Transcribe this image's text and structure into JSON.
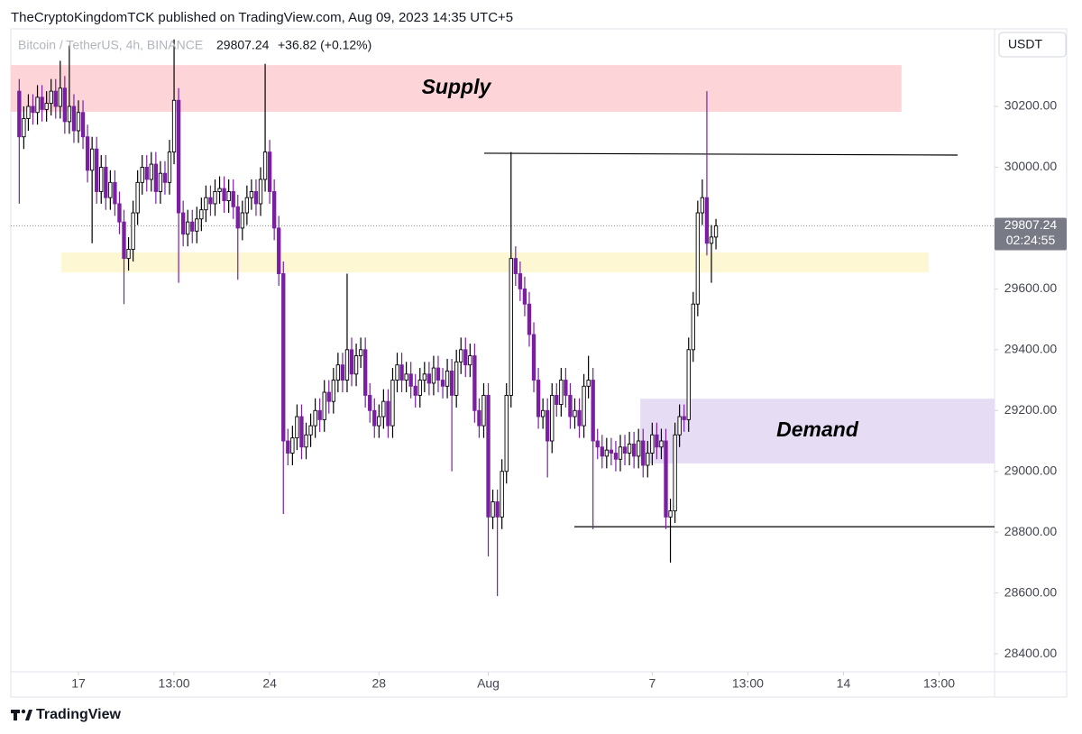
{
  "header": {
    "publisher": "TheCryptoKingdomTCK published on TradingView.com, Aug 09, 2023 14:35 UTC+5"
  },
  "chart_data": {
    "type": "candlestick",
    "symbol": "Bitcoin / TetherUS, 4h, BINANCE",
    "last_price": 29807.24,
    "change": "+36.82 (+0.12%)",
    "currency": "USDT",
    "countdown": "02:24:55",
    "up_color": "#ffffff",
    "down_color": "#7b1fa2",
    "wick_up_color": "#000000",
    "x": [
      -52,
      -48,
      -44,
      -40,
      -36,
      -32,
      -28,
      -24,
      -20,
      -16,
      -12,
      -8,
      -4,
      0,
      4,
      8,
      12,
      16,
      20,
      24,
      28,
      32,
      36,
      40,
      44,
      48,
      52,
      56,
      60,
      64,
      68,
      72,
      76,
      80,
      84,
      88,
      92,
      96,
      100,
      104,
      108,
      112,
      116,
      120,
      124,
      128,
      132,
      136,
      140,
      144,
      148,
      152,
      156,
      160,
      164,
      168,
      172,
      176,
      180,
      184,
      188,
      192,
      196,
      200,
      204,
      208,
      212,
      216,
      220,
      224,
      228,
      232,
      236,
      240,
      244,
      248,
      252,
      256,
      260,
      264,
      268,
      272,
      276,
      280,
      284,
      288,
      292,
      296,
      300,
      304,
      308,
      312,
      316,
      320,
      324,
      328,
      332,
      336,
      340,
      344,
      348,
      352,
      356,
      360,
      364,
      368,
      372,
      376,
      380,
      384,
      388,
      392,
      396,
      400,
      404,
      408,
      412,
      416,
      420,
      424,
      428,
      432,
      436,
      440,
      444,
      448,
      452,
      456,
      460,
      464,
      468,
      472,
      476,
      480,
      484,
      488,
      492,
      496,
      500,
      504,
      508,
      512,
      516,
      520,
      524,
      528,
      532,
      536,
      540,
      544,
      548,
      552,
      556,
      560
    ],
    "open": [
      30250,
      30100,
      30160,
      30200,
      30180,
      30230,
      30190,
      30210,
      30250,
      30200,
      30260,
      30150,
      30200,
      30120,
      30180,
      30100,
      29990,
      30060,
      29920,
      30000,
      29900,
      29950,
      29880,
      29820,
      29700,
      29730,
      29850,
      29950,
      30000,
      29960,
      30010,
      29920,
      29980,
      29950,
      30050,
      30220,
      29850,
      29780,
      29820,
      29790,
      29830,
      29860,
      29900,
      29880,
      29920,
      29930,
      29890,
      29920,
      29870,
      29800,
      29850,
      29900,
      29920,
      29880,
      29960,
      30050,
      29920,
      29800,
      29650,
      29100,
      29060,
      29110,
      29180,
      29080,
      29120,
      29150,
      29200,
      29170,
      29260,
      29230,
      29300,
      29350,
      29300,
      29400,
      29320,
      29380,
      29400,
      29250,
      29200,
      29150,
      29180,
      29230,
      29150,
      29300,
      29350,
      29300,
      29320,
      29280,
      29250,
      29300,
      29320,
      29290,
      29340,
      29300,
      29280,
      29330,
      29250,
      29360,
      29400,
      29350,
      29380,
      29200,
      29150,
      29250,
      28850,
      28900,
      28850,
      29000,
      29250,
      29700,
      29650,
      29600,
      29550,
      29450,
      29300,
      29180,
      29200,
      29100,
      29250,
      29220,
      29300,
      29250,
      29180,
      29200,
      29150,
      29280,
      29300,
      29100,
      29080,
      29050,
      29070,
      29060,
      29040,
      29080,
      29060,
      29090,
      29050,
      29100,
      29020,
      29060,
      29120,
      29080,
      29100,
      28850,
      28870,
      29120,
      29180,
      29170,
      29400,
      29550,
      29850,
      29900,
      29750,
      29770.42
    ],
    "high": [
      30290,
      30200,
      30240,
      30240,
      30270,
      30270,
      30250,
      30290,
      30290,
      30350,
      30300,
      30400,
      30240,
      30220,
      30220,
      30140,
      30100,
      30100,
      30040,
      30040,
      29990,
      29990,
      29920,
      29860,
      29770,
      29890,
      29990,
      30040,
      30040,
      30050,
      30050,
      30020,
      30020,
      30090,
      30420,
      30260,
      29890,
      29860,
      29860,
      29870,
      29900,
      29940,
      29940,
      29960,
      29970,
      29970,
      29960,
      29960,
      29910,
      29890,
      29940,
      29960,
      29960,
      30000,
      30340,
      30090,
      29960,
      29840,
      29690,
      29140,
      29150,
      29220,
      29220,
      29160,
      29190,
      29240,
      29240,
      29300,
      29300,
      29340,
      29390,
      29390,
      29650,
      29440,
      29420,
      29440,
      29440,
      29290,
      29240,
      29220,
      29270,
      29270,
      29340,
      29390,
      29390,
      29360,
      29360,
      29320,
      29340,
      29360,
      29360,
      29380,
      29380,
      29340,
      29370,
      29370,
      29400,
      29440,
      29440,
      29420,
      29420,
      29240,
      29290,
      29290,
      28940,
      28940,
      29040,
      29290,
      30050,
      29740,
      29690,
      29640,
      29590,
      29490,
      29340,
      29240,
      29240,
      29290,
      29290,
      29340,
      29340,
      29290,
      29240,
      29240,
      29320,
      29380,
      29340,
      29140,
      29120,
      29110,
      29110,
      29100,
      29120,
      29120,
      29130,
      29130,
      29140,
      29140,
      29100,
      29160,
      29160,
      29140,
      29140,
      28910,
      29160,
      29220,
      29220,
      29440,
      29590,
      29890,
      29960,
      30250,
      29810,
      29830
    ],
    "low": [
      29880,
      30060,
      30120,
      30140,
      30140,
      30150,
      30150,
      30170,
      30160,
      30160,
      30110,
      30110,
      30080,
      30080,
      30060,
      29950,
      29750,
      29880,
      29880,
      29860,
      29860,
      29840,
      29780,
      29550,
      29660,
      29690,
      29810,
      29910,
      29920,
      29920,
      29880,
      29880,
      29910,
      29910,
      30010,
      29620,
      29740,
      29740,
      29750,
      29750,
      29790,
      29820,
      29840,
      29840,
      29880,
      29850,
      29850,
      29830,
      29630,
      29760,
      29810,
      29860,
      29840,
      29840,
      29920,
      29880,
      29760,
      29610,
      28860,
      29020,
      29020,
      29070,
      29040,
      29040,
      29080,
      29110,
      29130,
      29130,
      29190,
      29190,
      29260,
      29260,
      29260,
      29280,
      29280,
      29340,
      29210,
      29160,
      29110,
      29110,
      29140,
      29110,
      29110,
      29260,
      29260,
      29260,
      29240,
      29210,
      29210,
      29260,
      29250,
      29250,
      29260,
      29240,
      29240,
      29000,
      29210,
      29320,
      29310,
      29310,
      29160,
      29110,
      29110,
      28720,
      28810,
      28590,
      28810,
      28960,
      29210,
      29610,
      29560,
      29510,
      29410,
      29260,
      29140,
      29140,
      28980,
      29060,
      29180,
      29180,
      29210,
      29140,
      29140,
      29110,
      29110,
      29240,
      28810,
      29040,
      29010,
      29010,
      29020,
      29000,
      29000,
      29020,
      29020,
      29010,
      29010,
      28980,
      28980,
      29020,
      29040,
      29040,
      28810,
      28700,
      28830,
      29080,
      29130,
      29130,
      29360,
      29510,
      29810,
      29710,
      29620,
      29730
    ],
    "close": [
      30100,
      30160,
      30200,
      30180,
      30230,
      30190,
      30210,
      30250,
      30200,
      30260,
      30150,
      30200,
      30120,
      30180,
      30100,
      29990,
      30060,
      29920,
      30000,
      29900,
      29950,
      29880,
      29820,
      29700,
      29730,
      29850,
      29950,
      30000,
      29960,
      30010,
      29920,
      29980,
      29950,
      30050,
      30220,
      29850,
      29780,
      29820,
      29790,
      29830,
      29860,
      29900,
      29880,
      29920,
      29930,
      29890,
      29920,
      29870,
      29800,
      29850,
      29900,
      29920,
      29880,
      29960,
      30050,
      29920,
      29800,
      29650,
      29100,
      29060,
      29110,
      29180,
      29080,
      29120,
      29150,
      29200,
      29170,
      29260,
      29230,
      29300,
      29350,
      29300,
      29400,
      29320,
      29380,
      29400,
      29250,
      29200,
      29150,
      29180,
      29230,
      29150,
      29300,
      29350,
      29300,
      29320,
      29280,
      29250,
      29300,
      29320,
      29290,
      29340,
      29300,
      29280,
      29330,
      29250,
      29360,
      29400,
      29350,
      29380,
      29200,
      29150,
      29250,
      28850,
      28900,
      28850,
      29000,
      29250,
      29700,
      29650,
      29600,
      29550,
      29450,
      29300,
      29180,
      29200,
      29100,
      29250,
      29220,
      29300,
      29250,
      29180,
      29200,
      29150,
      29280,
      29300,
      29100,
      29080,
      29050,
      29070,
      29060,
      29040,
      29080,
      29060,
      29090,
      29050,
      29100,
      29020,
      29060,
      29120,
      29080,
      29100,
      28850,
      28870,
      29120,
      29180,
      29170,
      29400,
      29550,
      29850,
      29900,
      29750,
      29770.42,
      29807.24
    ],
    "xlim": [
      -59.4,
      804.7
    ],
    "xticks": [
      {
        "value": 0,
        "label": "17"
      },
      {
        "value": 84,
        "label": "13:00"
      },
      {
        "value": 168,
        "label": "24"
      },
      {
        "value": 264,
        "label": "28"
      },
      {
        "value": 360,
        "label": "Aug"
      },
      {
        "value": 504,
        "label": "7"
      },
      {
        "value": 588,
        "label": "13:00"
      },
      {
        "value": 672,
        "label": "14"
      },
      {
        "value": 756,
        "label": "13:00"
      }
    ],
    "ylim": [
      28341,
      30455
    ],
    "yticks": [
      {
        "value": 28400,
        "label": "28400.00"
      },
      {
        "value": 28600,
        "label": "28600.00"
      },
      {
        "value": 28800,
        "label": "28800.00"
      },
      {
        "value": 29000,
        "label": "29000.00"
      },
      {
        "value": 29200,
        "label": "29200.00"
      },
      {
        "value": 29400,
        "label": "29400.00"
      },
      {
        "value": 29600,
        "label": "29600.00"
      },
      {
        "value": 29800,
        "label": "29800.00"
      },
      {
        "value": 30000,
        "label": "30000.00"
      },
      {
        "value": 30200,
        "label": "30200.00"
      }
    ],
    "zones": [
      {
        "label": "Supply",
        "x": [
          -59.4,
          723
        ],
        "y": [
          30182,
          30336
        ],
        "color": "#fdd5d9"
      },
      {
        "x": [
          -15,
          747
        ],
        "y": [
          29654,
          29720
        ],
        "color": "#fdf8d3"
      },
      {
        "label": "Demand",
        "x": [
          493.5,
          804.7
        ],
        "y": [
          29026,
          29239
        ],
        "color": "#e6ddf4"
      }
    ],
    "lines": [
      {
        "x": [
          356.4,
          772.3
        ],
        "y": [
          30046,
          30040
        ]
      },
      {
        "x": [
          435.6,
          804.7
        ],
        "y": [
          28818,
          28818
        ]
      }
    ]
  },
  "footer": {
    "brand": "TradingView"
  }
}
